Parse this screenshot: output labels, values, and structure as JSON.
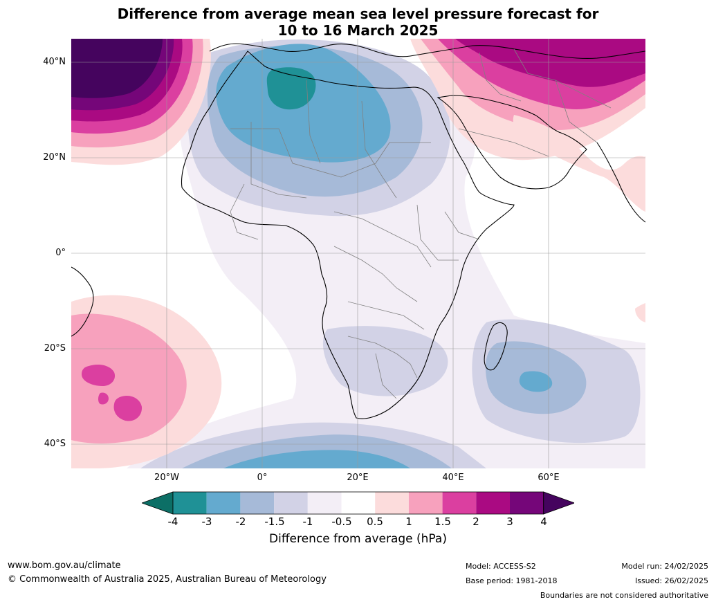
{
  "title_line1": "Difference from average mean sea level pressure forecast for",
  "title_line2": "10 to 16 March 2025",
  "lat_labels": [
    "40°N",
    "20°N",
    "0°",
    "20°S",
    "40°S"
  ],
  "lon_labels": [
    "20°W",
    "0°",
    "20°E",
    "40°E",
    "60°E"
  ],
  "colorbar": {
    "ticks": [
      "-4",
      "-3",
      "-2",
      "-1.5",
      "-1",
      "-0.5",
      "0.5",
      "1",
      "1.5",
      "2",
      "3",
      "4"
    ],
    "colors": [
      "#0c6f66",
      "#1f9196",
      "#64aacf",
      "#a6bad8",
      "#d2d2e6",
      "#f3eef6",
      "#ffffff",
      "#fcdcdc",
      "#f7a1bd",
      "#db3fa0",
      "#aa0a82",
      "#750679",
      "#45045e"
    ],
    "label": "Difference from average (hPa)"
  },
  "footer": {
    "website": "www.bom.gov.au/climate",
    "copyright": "© Commonwealth of Australia 2025, Australian Bureau of Meteorology",
    "model": "Model: ACCESS-S2",
    "base_period": "Base period: 1981-2018",
    "model_run": "Model run: 24/02/2025",
    "issued": "Issued: 26/02/2025",
    "disclaimer": "Boundaries are not considered authoritative"
  }
}
